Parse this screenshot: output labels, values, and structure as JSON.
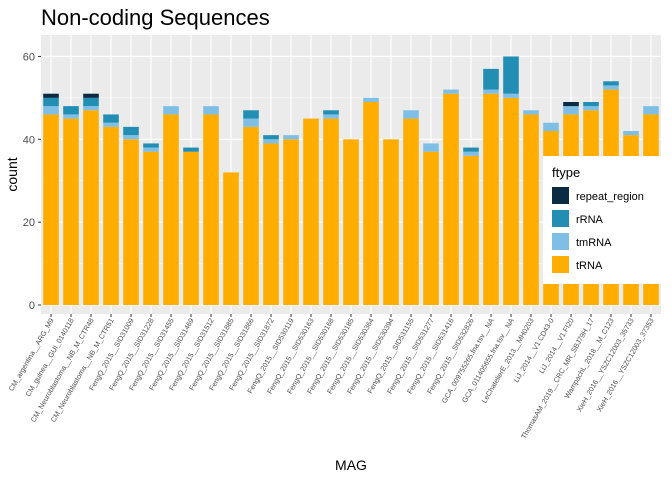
{
  "chart_data": {
    "type": "bar",
    "stacked": true,
    "title": "Non-coding Sequences",
    "xlabel": "MAG",
    "ylabel": "count",
    "ylim": [
      0,
      63
    ],
    "yticks": [
      0,
      20,
      40,
      60
    ],
    "grid": true,
    "background": "#ebebeb",
    "legend": {
      "title": "ftype",
      "placement": "right",
      "entries": [
        "repeat_region",
        "rRNA",
        "tmRNA",
        "tRNA"
      ]
    },
    "categories": [
      "CM_argentina__ARG_M9",
      "CM_guinea__GUI_0140118",
      "CM_Neuroblastoma__NB_M_CTR48",
      "CM_Neuroblastoma__NB_M_CTR51",
      "FengQ_2015__SID31009",
      "FengQ_2015__SID31228",
      "FengQ_2015__SID31455",
      "FengQ_2015__SID31469",
      "FengQ_2015__SID31512",
      "FengQ_2015__SID31885",
      "FengQ_2015__SID31866",
      "FengQ_2015__SID31872",
      "FengQ_2015__SID530119",
      "FengQ_2015__SID530163",
      "FengQ_2015__SID530168",
      "FengQ_2015__SID530185",
      "FengQ_2015__SID530364",
      "FengQ_2015__SID530394",
      "FengQ_2015__SID531155",
      "FengQ_2015__SID531277",
      "FengQ_2015__SID531416",
      "FengQ_2015__SID532826",
      "GCA_009755265.fna.tsv__NA",
      "GCA_011405655.fna.tsv__NA",
      "LeChatelierE_2013__MH0203",
      "LiJ_2014__V1.CD43-0",
      "LiJ_2014__V1.FI20",
      "ThomasAM_2019__CRC_MR_SBJ79H_17",
      "WampachL_2018__M_C123",
      "XieH_2016__YSZC12003_35733",
      "XieH_2016__YSZC12003_37353"
    ],
    "series": [
      {
        "name": "tRNA",
        "color": "#ffad00",
        "values": [
          46,
          45,
          47,
          43,
          40,
          37,
          46,
          37,
          46,
          32,
          43,
          39,
          40,
          45,
          45,
          40,
          49,
          40,
          45,
          37,
          51,
          36,
          51,
          50,
          46,
          42,
          46,
          47,
          52,
          41,
          46
        ]
      },
      {
        "name": "tmRNA",
        "color": "#7fbfe5",
        "values": [
          2,
          1,
          1,
          1,
          1,
          1,
          2,
          0,
          2,
          0,
          2,
          1,
          1,
          0,
          1,
          0,
          1,
          0,
          2,
          2,
          1,
          1,
          1,
          1,
          1,
          2,
          2,
          1,
          1,
          1,
          2
        ]
      },
      {
        "name": "rRNA",
        "color": "#238eb3",
        "values": [
          2,
          2,
          2,
          2,
          2,
          1,
          0,
          1,
          0,
          0,
          2,
          1,
          0,
          0,
          1,
          0,
          0,
          0,
          0,
          0,
          0,
          1,
          5,
          9,
          0,
          0,
          0,
          1,
          1,
          0,
          0
        ]
      },
      {
        "name": "repeat_region",
        "color": "#0b2a44",
        "values": [
          1,
          0,
          1,
          0,
          0,
          0,
          0,
          0,
          0,
          0,
          0,
          0,
          0,
          0,
          0,
          0,
          0,
          0,
          0,
          0,
          0,
          0,
          0,
          0,
          0,
          0,
          1,
          0,
          0,
          0,
          0
        ]
      }
    ]
  }
}
